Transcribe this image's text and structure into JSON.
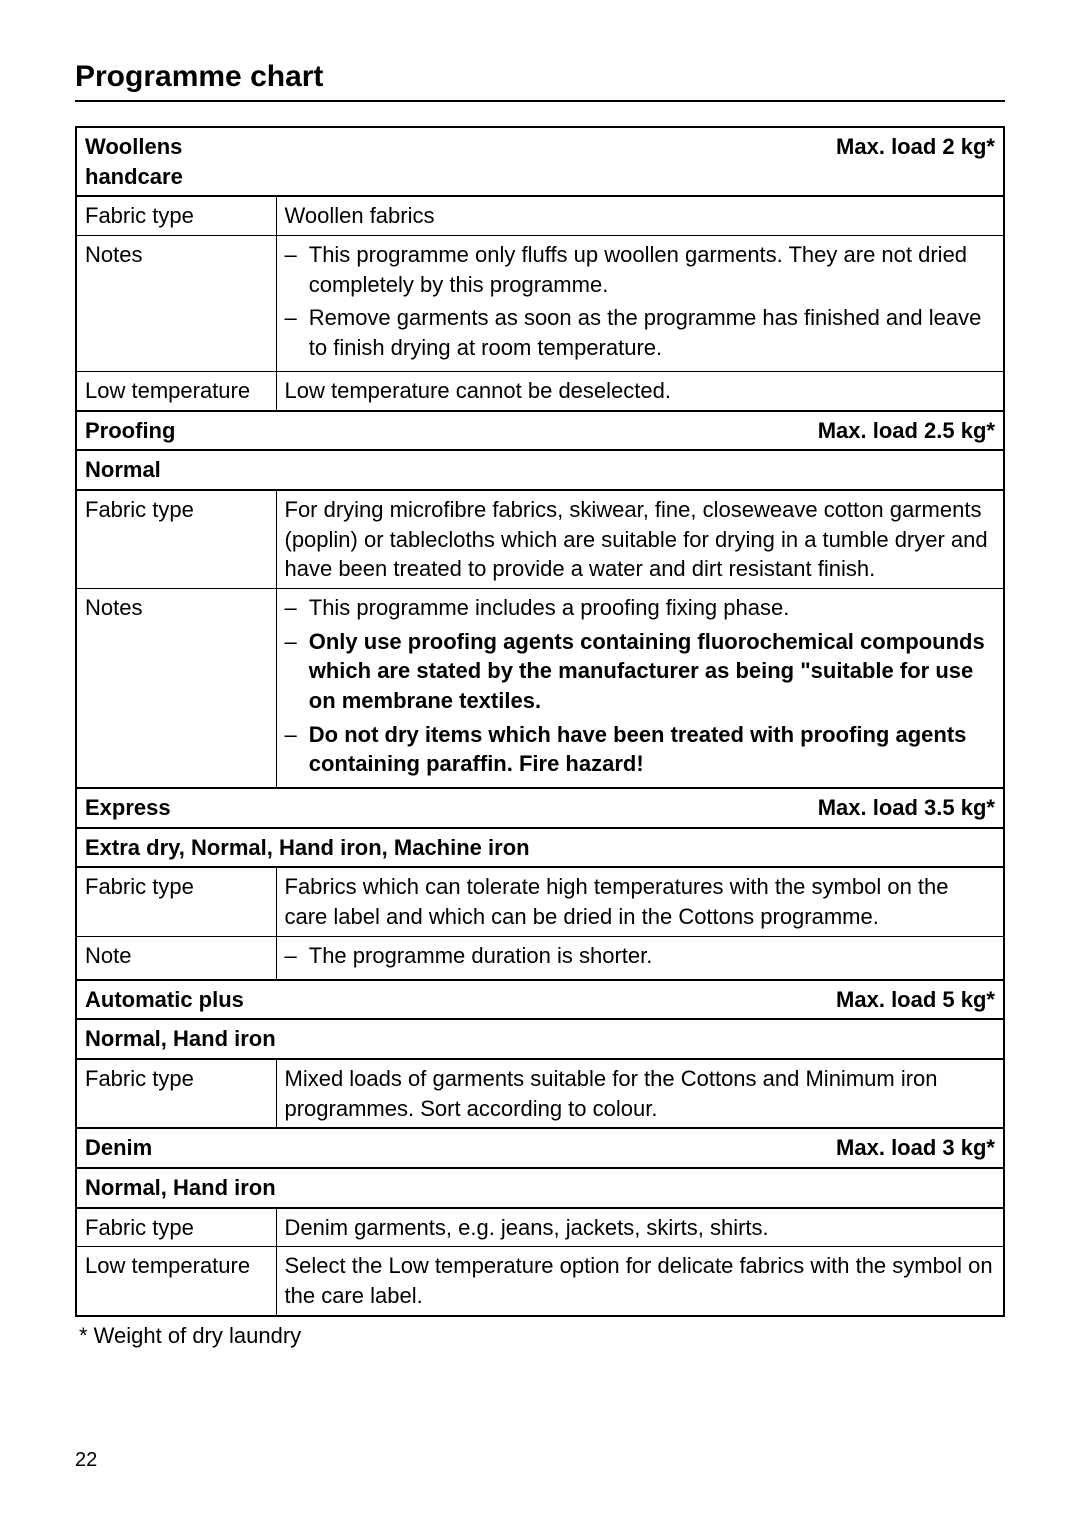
{
  "title": "Programme chart",
  "page_number": "22",
  "footnote": "*  Weight of dry laundry",
  "labels": {
    "fabric_type": "Fabric type",
    "notes": "Notes",
    "note": "Note",
    "low_temp": "Low temperature"
  },
  "programmes": [
    {
      "name": "Woollens handcare",
      "load": "Max. load 2 kg*",
      "rows": [
        {
          "label_key": "fabric_type",
          "type": "text",
          "content": "Woollen fabrics"
        },
        {
          "label_key": "notes",
          "type": "list",
          "items": [
            {
              "text": "This programme only fluffs up woollen garments. They are not dried completely by this programme.",
              "bold": false
            },
            {
              "text": "Remove garments as soon as the programme has finished and leave to finish drying at room temperature.",
              "bold": false
            }
          ]
        },
        {
          "label_key": "low_temp",
          "type": "text",
          "content": "Low temperature cannot be deselected."
        }
      ]
    },
    {
      "name": "Proofing",
      "load": "Max. load 2.5 kg*",
      "sublevel": "Normal",
      "rows": [
        {
          "label_key": "fabric_type",
          "type": "text",
          "content": "For drying microfibre fabrics, skiwear, fine, closeweave cotton garments (poplin) or tablecloths which are suitable for drying in a tumble dryer and have been treated to provide a water and dirt resistant finish."
        },
        {
          "label_key": "notes",
          "type": "list",
          "items": [
            {
              "text": "This programme includes a proofing fixing phase.",
              "bold": false
            },
            {
              "text": "Only use proofing agents containing fluorochemical compounds which are stated by the manufacturer as being \"suitable for use on membrane textiles.",
              "bold": true
            },
            {
              "text": "Do not dry items which have been treated with proofing agents containing paraffin. Fire hazard!",
              "bold": true
            }
          ]
        }
      ]
    },
    {
      "name": "Express",
      "load": "Max. load 3.5 kg*",
      "sublevel": "Extra dry, Normal, Hand iron, Machine iron",
      "rows": [
        {
          "label_key": "fabric_type",
          "type": "mixed",
          "parts": [
            {
              "text": "Fabrics which can tolerate high temperatures with the symbol on the care label and which can be dried in the ",
              "style": "normal"
            },
            {
              "text": "Cottons",
              "style": "italic"
            },
            {
              "text": " programme.",
              "style": "normal"
            }
          ]
        },
        {
          "label_key": "note",
          "type": "list",
          "items": [
            {
              "text": "The programme duration is shorter.",
              "bold": false
            }
          ]
        }
      ]
    },
    {
      "name": "Automatic plus",
      "load": "Max. load 5 kg*",
      "sublevel": "Normal, Hand iron",
      "rows": [
        {
          "label_key": "fabric_type",
          "type": "mixed",
          "parts": [
            {
              "text": "Mixed loads of garments suitable for the ",
              "style": "normal"
            },
            {
              "text": "Cottons",
              "style": "italic"
            },
            {
              "text": " and ",
              "style": "normal"
            },
            {
              "text": "Minimum iron",
              "style": "italic"
            },
            {
              "text": " programmes. Sort according to colour.",
              "style": "normal"
            }
          ]
        }
      ]
    },
    {
      "name": "Denim",
      "load": "Max. load 3 kg*",
      "sublevel": "Normal, Hand iron",
      "rows": [
        {
          "label_key": "fabric_type",
          "type": "text",
          "content": "Denim garments, e.g. jeans, jackets, skirts, shirts."
        },
        {
          "label_key": "low_temp",
          "type": "mixed",
          "parts": [
            {
              "text": "Select the ",
              "style": "normal"
            },
            {
              "text": "Low temperature",
              "style": "italic"
            },
            {
              "text": " option for delicate fabrics with the symbol on the care label.",
              "style": "normal"
            }
          ]
        }
      ]
    }
  ]
}
